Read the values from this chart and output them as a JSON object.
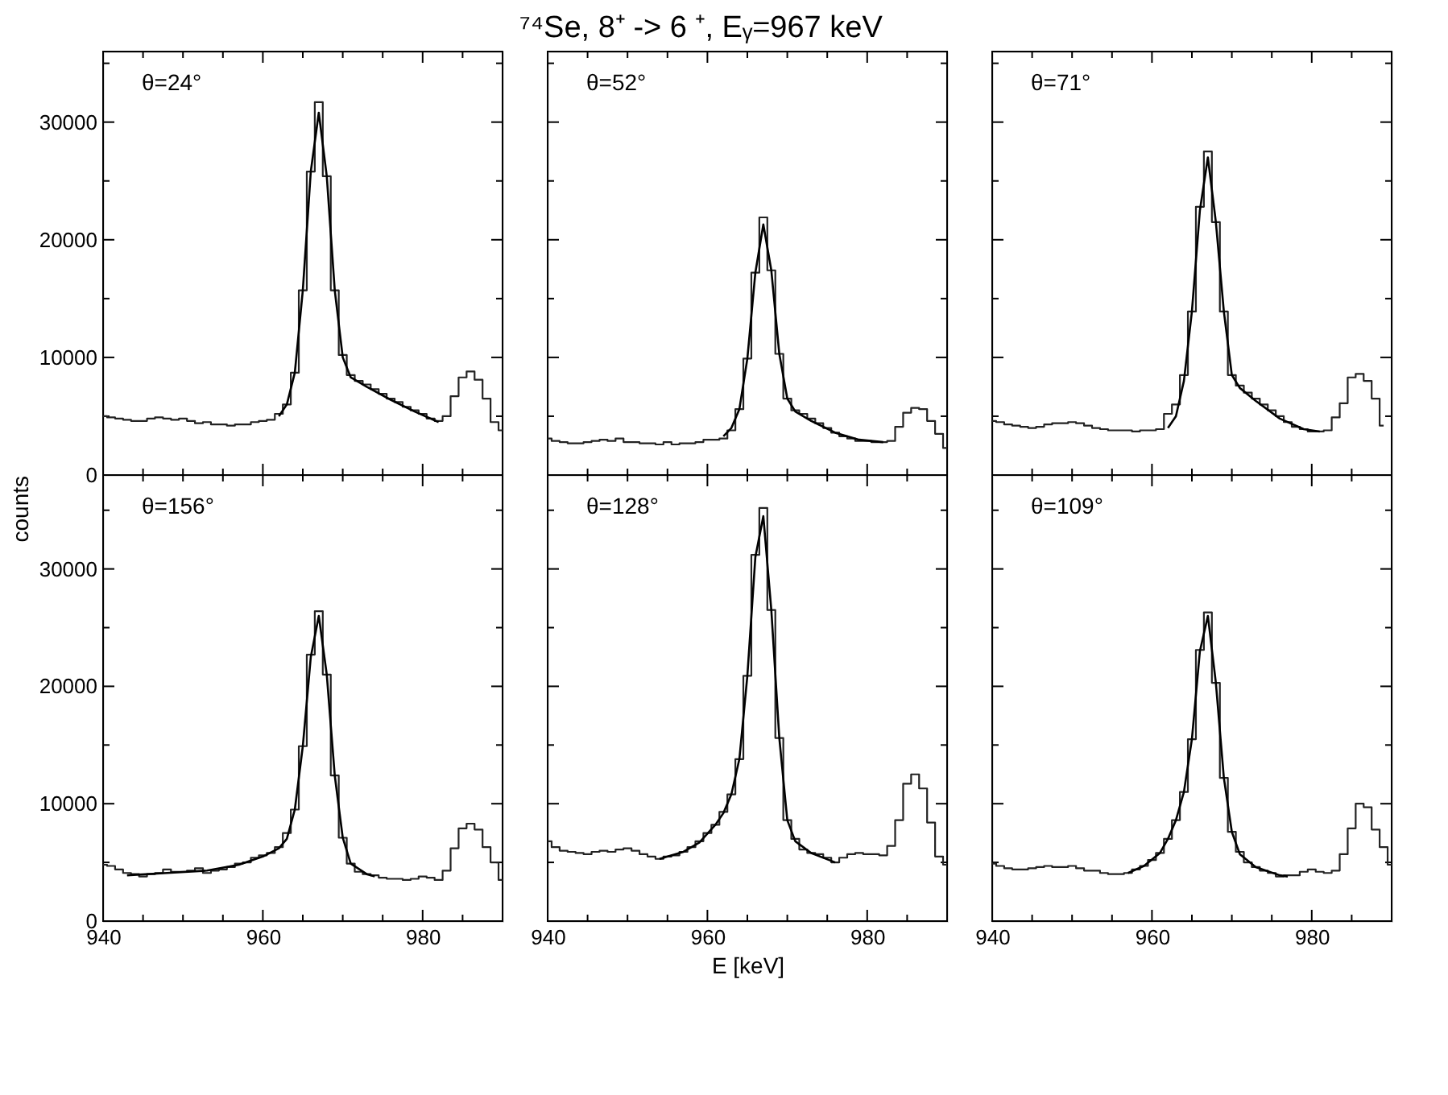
{
  "chart_data": [
    {
      "type": "step",
      "annotations": [
        "θ=24°"
      ],
      "tick_labels": "y",
      "grid": false,
      "legend": false,
      "xlim": [
        940,
        990
      ],
      "ylim": [
        0,
        36000
      ],
      "xticks": [
        940,
        {
          "value": 945,
          "label": null
        },
        {
          "value": 950,
          "label": null
        },
        {
          "value": 955,
          "label": null
        },
        960,
        {
          "value": 965,
          "label": null
        },
        {
          "value": 970,
          "label": null
        },
        {
          "value": 975,
          "label": null
        },
        980,
        {
          "value": 985,
          "label": null
        }
      ],
      "yticks": [
        0,
        {
          "value": 5000,
          "label": null
        },
        10000,
        {
          "value": 15000,
          "label": null
        },
        20000,
        {
          "value": 25000,
          "label": null
        },
        30000,
        {
          "value": 35000,
          "label": null
        }
      ],
      "series": [
        {
          "color": "#222222",
          "x": [
            940,
            941,
            942,
            943,
            944,
            945,
            946,
            947,
            948,
            949,
            950,
            951,
            952,
            953,
            954,
            955,
            956,
            957,
            958,
            959,
            960,
            961,
            962,
            963,
            964,
            965,
            966,
            967,
            968,
            969,
            970,
            971,
            972,
            973,
            974,
            975,
            976,
            977,
            978,
            979,
            980,
            981,
            982,
            983,
            984,
            985,
            986,
            987,
            988,
            989,
            990
          ],
          "values": [
            5000,
            4900,
            4800,
            4700,
            4600,
            4600,
            4800,
            4900,
            4800,
            4700,
            4800,
            4600,
            4400,
            4500,
            4300,
            4300,
            4200,
            4300,
            4300,
            4500,
            4600,
            4700,
            5200,
            6000,
            8700,
            15700,
            25800,
            31700,
            25400,
            15700,
            10200,
            8500,
            8000,
            7700,
            7300,
            6900,
            6500,
            6200,
            5800,
            5500,
            5200,
            4800,
            4600,
            5000,
            6700,
            8300,
            8800,
            8100,
            6500,
            4500,
            3800
          ]
        },
        {
          "type": "line",
          "color": "#000000",
          "x": [
            962,
            963,
            964,
            965,
            966,
            967,
            968,
            969,
            970,
            971,
            973,
            976,
            979,
            982
          ],
          "values": [
            5000,
            6000,
            8700,
            15700,
            25800,
            30800,
            25400,
            15700,
            10000,
            8300,
            7500,
            6400,
            5400,
            4500
          ]
        }
      ]
    },
    {
      "type": "step",
      "title": "⁷⁴Se, 8⁺ -> 6 ⁺, Eᵧ=967 keV",
      "annotations": [
        "θ=52°"
      ],
      "tick_labels": false,
      "grid": false,
      "legend": false,
      "xlim": [
        940,
        990
      ],
      "ylim": [
        0,
        36000
      ],
      "xticks": [
        940,
        {
          "value": 945,
          "label": null
        },
        {
          "value": 950,
          "label": null
        },
        {
          "value": 955,
          "label": null
        },
        960,
        {
          "value": 965,
          "label": null
        },
        {
          "value": 970,
          "label": null
        },
        {
          "value": 975,
          "label": null
        },
        980,
        {
          "value": 985,
          "label": null
        }
      ],
      "yticks": [
        0,
        {
          "value": 5000,
          "label": null
        },
        10000,
        {
          "value": 15000,
          "label": null
        },
        20000,
        {
          "value": 25000,
          "label": null
        },
        30000,
        {
          "value": 35000,
          "label": null
        }
      ],
      "series": [
        {
          "color": "#222222",
          "x": [
            940,
            941,
            942,
            943,
            944,
            945,
            946,
            947,
            948,
            949,
            950,
            951,
            952,
            953,
            954,
            955,
            956,
            957,
            958,
            959,
            960,
            961,
            962,
            963,
            964,
            965,
            966,
            967,
            968,
            969,
            970,
            971,
            972,
            973,
            974,
            975,
            976,
            977,
            978,
            979,
            980,
            981,
            982,
            983,
            984,
            985,
            986,
            987,
            988,
            989,
            990
          ],
          "values": [
            3100,
            2900,
            2800,
            2700,
            2700,
            2800,
            2900,
            3000,
            2900,
            3100,
            2800,
            2800,
            2700,
            2700,
            2600,
            2800,
            2600,
            2700,
            2700,
            2800,
            3000,
            3000,
            3100,
            3800,
            5600,
            9900,
            17200,
            21900,
            17400,
            10300,
            6500,
            5500,
            5200,
            4800,
            4400,
            4000,
            3600,
            3300,
            3100,
            2900,
            2900,
            2800,
            2800,
            2900,
            4100,
            5300,
            5700,
            5600,
            4600,
            3500,
            2300
          ]
        },
        {
          "type": "line",
          "color": "#000000",
          "x": [
            962,
            963,
            964,
            965,
            966,
            967,
            968,
            969,
            970,
            971,
            973,
            976,
            979,
            982
          ],
          "values": [
            3300,
            4000,
            5600,
            9900,
            17200,
            21300,
            17400,
            10300,
            6500,
            5400,
            4600,
            3600,
            3000,
            2800
          ]
        }
      ]
    },
    {
      "type": "step",
      "annotations": [
        "θ=71°"
      ],
      "tick_labels": false,
      "grid": false,
      "legend": false,
      "xlim": [
        940,
        990
      ],
      "ylim": [
        0,
        36000
      ],
      "xticks": [
        940,
        {
          "value": 945,
          "label": null
        },
        {
          "value": 950,
          "label": null
        },
        {
          "value": 955,
          "label": null
        },
        960,
        {
          "value": 965,
          "label": null
        },
        {
          "value": 970,
          "label": null
        },
        {
          "value": 975,
          "label": null
        },
        980,
        {
          "value": 985,
          "label": null
        }
      ],
      "yticks": [
        0,
        {
          "value": 5000,
          "label": null
        },
        10000,
        {
          "value": 15000,
          "label": null
        },
        20000,
        {
          "value": 25000,
          "label": null
        },
        30000,
        {
          "value": 35000,
          "label": null
        }
      ],
      "series": [
        {
          "color": "#222222",
          "x": [
            940,
            941,
            942,
            943,
            944,
            945,
            946,
            947,
            948,
            949,
            950,
            951,
            952,
            953,
            954,
            955,
            956,
            957,
            958,
            959,
            960,
            961,
            962,
            963,
            964,
            965,
            966,
            967,
            968,
            969,
            970,
            971,
            972,
            973,
            974,
            975,
            976,
            977,
            978,
            979,
            980,
            981,
            982,
            983,
            984,
            985,
            986,
            987,
            988,
            989
          ],
          "values": [
            4600,
            4500,
            4300,
            4200,
            4100,
            4000,
            4100,
            4300,
            4400,
            4400,
            4500,
            4400,
            4200,
            4000,
            3900,
            3800,
            3800,
            3800,
            3700,
            3800,
            3800,
            3900,
            5200,
            6000,
            8500,
            13900,
            22800,
            27500,
            21500,
            13900,
            8500,
            7600,
            7000,
            6500,
            6000,
            5500,
            5000,
            4500,
            4100,
            3900,
            3700,
            3700,
            3800,
            4900,
            6100,
            8300,
            8600,
            8000,
            6500,
            4200
          ]
        },
        {
          "type": "line",
          "color": "#000000",
          "x": [
            962,
            963,
            964,
            965,
            966,
            967,
            968,
            969,
            970,
            971,
            973,
            976,
            979,
            981
          ],
          "values": [
            4000,
            5000,
            8000,
            13900,
            22500,
            27000,
            21500,
            13900,
            8500,
            7400,
            6300,
            4800,
            3900,
            3700
          ]
        }
      ]
    },
    {
      "type": "step",
      "annotations": [
        "θ=156°"
      ],
      "ylabel": "counts",
      "grid": false,
      "legend": false,
      "xlim": [
        940,
        990
      ],
      "ylim": [
        0,
        38000
      ],
      "xticks": [
        940,
        {
          "value": 945,
          "label": null
        },
        {
          "value": 950,
          "label": null
        },
        {
          "value": 955,
          "label": null
        },
        960,
        {
          "value": 965,
          "label": null
        },
        {
          "value": 970,
          "label": null
        },
        {
          "value": 975,
          "label": null
        },
        980,
        {
          "value": 985,
          "label": null
        }
      ],
      "yticks": [
        0,
        {
          "value": 5000,
          "label": null
        },
        10000,
        {
          "value": 15000,
          "label": null
        },
        20000,
        {
          "value": 25000,
          "label": null
        },
        30000,
        {
          "value": 35000,
          "label": null
        }
      ],
      "series": [
        {
          "color": "#222222",
          "x": [
            940,
            941,
            942,
            943,
            944,
            945,
            946,
            947,
            948,
            949,
            950,
            951,
            952,
            953,
            954,
            955,
            956,
            957,
            958,
            959,
            960,
            961,
            962,
            963,
            964,
            965,
            966,
            967,
            968,
            969,
            970,
            971,
            972,
            973,
            974,
            975,
            976,
            977,
            978,
            979,
            980,
            981,
            982,
            983,
            984,
            985,
            986,
            987,
            988,
            989,
            990
          ],
          "values": [
            4800,
            4700,
            4400,
            4100,
            4000,
            3800,
            4000,
            4100,
            4400,
            4200,
            4200,
            4300,
            4500,
            4100,
            4300,
            4400,
            4600,
            4900,
            5000,
            5400,
            5600,
            5800,
            6300,
            7500,
            9500,
            14900,
            22700,
            26400,
            21000,
            12400,
            7100,
            4900,
            4200,
            4000,
            3900,
            3700,
            3600,
            3600,
            3500,
            3600,
            3800,
            3700,
            3500,
            4300,
            6200,
            7900,
            8300,
            7800,
            6300,
            5000,
            3500
          ]
        },
        {
          "type": "line",
          "color": "#000000",
          "x": [
            943,
            948,
            953,
            957,
            960,
            962,
            963,
            964,
            965,
            966,
            967,
            968,
            969,
            970,
            971,
            973,
            974
          ],
          "values": [
            3900,
            4100,
            4300,
            4800,
            5500,
            6200,
            7000,
            9500,
            14900,
            22500,
            26000,
            21000,
            12400,
            7100,
            4900,
            4000,
            3800
          ]
        }
      ]
    },
    {
      "type": "step",
      "annotations": [
        "θ=128°"
      ],
      "xlabel": "E [keV]",
      "tick_labels": "x",
      "grid": false,
      "legend": false,
      "xlim": [
        940,
        990
      ],
      "ylim": [
        0,
        38000
      ],
      "xticks": [
        940,
        {
          "value": 945,
          "label": null
        },
        {
          "value": 950,
          "label": null
        },
        {
          "value": 955,
          "label": null
        },
        960,
        {
          "value": 965,
          "label": null
        },
        {
          "value": 970,
          "label": null
        },
        {
          "value": 975,
          "label": null
        },
        980,
        {
          "value": 985,
          "label": null
        }
      ],
      "yticks": [
        0,
        {
          "value": 5000,
          "label": null
        },
        10000,
        {
          "value": 15000,
          "label": null
        },
        20000,
        {
          "value": 25000,
          "label": null
        },
        30000,
        {
          "value": 35000,
          "label": null
        }
      ],
      "series": [
        {
          "color": "#222222",
          "x": [
            940,
            941,
            942,
            943,
            944,
            945,
            946,
            947,
            948,
            949,
            950,
            951,
            952,
            953,
            954,
            955,
            956,
            957,
            958,
            959,
            960,
            961,
            962,
            963,
            964,
            965,
            966,
            967,
            968,
            969,
            970,
            971,
            972,
            973,
            974,
            975,
            976,
            977,
            978,
            979,
            980,
            981,
            982,
            983,
            984,
            985,
            986,
            987,
            988,
            989,
            990
          ],
          "values": [
            6800,
            6300,
            6000,
            5900,
            5800,
            5700,
            5900,
            6000,
            5900,
            6100,
            6200,
            6000,
            5700,
            5500,
            5300,
            5500,
            5600,
            5900,
            6300,
            6800,
            7500,
            8200,
            9300,
            10800,
            13800,
            20900,
            31200,
            35200,
            26500,
            15600,
            8600,
            7000,
            6100,
            5800,
            5700,
            5400,
            5000,
            5400,
            5700,
            5800,
            5700,
            5700,
            5600,
            6400,
            8600,
            11700,
            12500,
            11300,
            8400,
            5500,
            4800
          ]
        },
        {
          "type": "line",
          "color": "#000000",
          "x": [
            954,
            957,
            959,
            961,
            962,
            963,
            964,
            965,
            966,
            967,
            968,
            969,
            970,
            971,
            973,
            976
          ],
          "values": [
            5300,
            5900,
            6700,
            8200,
            9200,
            10800,
            13800,
            20900,
            31000,
            34500,
            26500,
            15600,
            8600,
            6800,
            5800,
            5000
          ]
        }
      ]
    },
    {
      "type": "step",
      "annotations": [
        "θ=109°"
      ],
      "tick_labels": "x",
      "grid": false,
      "legend": false,
      "xlim": [
        940,
        990
      ],
      "ylim": [
        0,
        38000
      ],
      "xticks": [
        940,
        {
          "value": 945,
          "label": null
        },
        {
          "value": 950,
          "label": null
        },
        {
          "value": 955,
          "label": null
        },
        960,
        {
          "value": 965,
          "label": null
        },
        {
          "value": 970,
          "label": null
        },
        {
          "value": 975,
          "label": null
        },
        980,
        {
          "value": 985,
          "label": null
        }
      ],
      "yticks": [
        0,
        {
          "value": 5000,
          "label": null
        },
        10000,
        {
          "value": 15000,
          "label": null
        },
        20000,
        {
          "value": 25000,
          "label": null
        },
        30000,
        {
          "value": 35000,
          "label": null
        }
      ],
      "series": [
        {
          "color": "#222222",
          "x": [
            940,
            941,
            942,
            943,
            944,
            945,
            946,
            947,
            948,
            949,
            950,
            951,
            952,
            953,
            954,
            955,
            956,
            957,
            958,
            959,
            960,
            961,
            962,
            963,
            964,
            965,
            966,
            967,
            968,
            969,
            970,
            971,
            972,
            973,
            974,
            975,
            976,
            977,
            978,
            979,
            980,
            981,
            982,
            983,
            984,
            985,
            986,
            987,
            988,
            989,
            990
          ],
          "values": [
            4900,
            4700,
            4500,
            4400,
            4400,
            4500,
            4600,
            4700,
            4600,
            4600,
            4700,
            4500,
            4300,
            4300,
            4100,
            4000,
            4000,
            4100,
            4400,
            4700,
            5200,
            5800,
            7000,
            8600,
            11000,
            15500,
            23100,
            26300,
            20300,
            12200,
            7600,
            5900,
            5000,
            4600,
            4300,
            4100,
            3800,
            3900,
            3900,
            4200,
            4400,
            4200,
            4100,
            4300,
            5700,
            7900,
            10000,
            9700,
            7800,
            6300,
            4800
          ]
        },
        {
          "type": "line",
          "color": "#000000",
          "x": [
            957,
            959,
            961,
            962,
            963,
            964,
            965,
            966,
            967,
            968,
            969,
            970,
            971,
            973,
            976,
            977
          ],
          "values": [
            4100,
            4700,
            5800,
            7000,
            8600,
            11000,
            15500,
            23000,
            26000,
            20300,
            12200,
            7600,
            5700,
            4600,
            3900,
            3800
          ]
        }
      ]
    }
  ]
}
